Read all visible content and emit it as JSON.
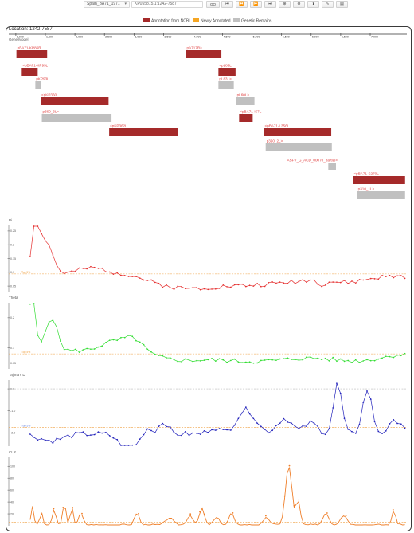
{
  "toolbar": {
    "strain": "Spain_BA71_1971",
    "region": "KP055815.1:1242-7587",
    "go_label": "GO",
    "buttons": [
      {
        "name": "first-icon",
        "glyph": "⏮"
      },
      {
        "name": "previous-icon",
        "glyph": "⏪"
      },
      {
        "name": "next-icon",
        "glyph": "⏩"
      },
      {
        "name": "last-icon",
        "glyph": "⏭"
      },
      {
        "name": "zoom-in-icon",
        "glyph": "⊕"
      },
      {
        "name": "zoom-out-icon",
        "glyph": "⊖"
      },
      {
        "name": "info-icon",
        "glyph": "ℹ"
      },
      {
        "name": "chart-icon",
        "glyph": "∿"
      },
      {
        "name": "document-icon",
        "glyph": "▤"
      }
    ]
  },
  "legend": [
    {
      "label": "Annotation from NCBI",
      "color": "#a52a2a"
    },
    {
      "label": "Newly Annotated",
      "color": "#f5a623"
    },
    {
      "label": "Genetic Remains",
      "color": "#c0c0c0"
    }
  ],
  "location_label": "Location: 1242-7587",
  "gene_model_label": "Gene Model",
  "axis": {
    "start": 1242,
    "end": 7587,
    "ticks": [
      1000,
      1500,
      2000,
      2500,
      3000,
      3500,
      4000,
      4500,
      5000,
      5500,
      6000,
      6500,
      7000
    ],
    "tick_labels": [
      "1,000",
      "1,500",
      "2,000",
      "2,500",
      "3,000",
      "3,500",
      "4,000",
      "4,500",
      "5,000",
      "5,500",
      "6,000",
      "6,500",
      "7,000"
    ]
  },
  "colors": {
    "ncbi": "#a52a2a",
    "remains": "#c0c0c0",
    "label": "#e04040",
    "pi": "#e53030",
    "theta": "#33dd33",
    "tajima": "#2222bb",
    "clr": "#ef7f2a",
    "threshold": "#f0a040"
  },
  "genes": [
    {
      "label": "pBA71-KP86R",
      "start": 1010,
      "end": 1530,
      "type": "ncbi",
      "row": 0,
      "label_anchor": "left"
    },
    {
      "label": "<pBA71-KP93L",
      "start": 1100,
      "end": 1370,
      "type": "ncbi",
      "row": 1,
      "label_anchor": "left"
    },
    {
      "label": "pKP93L",
      "start": 1330,
      "end": 1420,
      "type": "remains",
      "row": 2,
      "label_anchor": "left"
    },
    {
      "label": "<pKP360L",
      "start": 1420,
      "end": 2570,
      "type": "ncbi",
      "row": 3,
      "label_anchor": "left"
    },
    {
      "label": "p360_3L>",
      "start": 1440,
      "end": 2620,
      "type": "remains",
      "row": 4,
      "label_anchor": "left"
    },
    {
      "label": "<pKP362L",
      "start": 2580,
      "end": 3750,
      "type": "ncbi",
      "row": 5,
      "label_anchor": "left"
    },
    {
      "label": "pA717R>",
      "start": 3880,
      "end": 4480,
      "type": "ncbi",
      "row": 0,
      "label_anchor": "left"
    },
    {
      "label": "<pL83L",
      "start": 4430,
      "end": 4720,
      "type": "ncbi",
      "row": 1,
      "label_anchor": "left"
    },
    {
      "label": "pL83L>",
      "start": 4430,
      "end": 4690,
      "type": "remains",
      "row": 2,
      "label_anchor": "left"
    },
    {
      "label": "pL60L>",
      "start": 4730,
      "end": 5040,
      "type": "remains",
      "row": 3,
      "label_anchor": "left"
    },
    {
      "label": "<pBA71-I57L",
      "start": 4780,
      "end": 5010,
      "type": "ncbi",
      "row": 4,
      "label_anchor": "left"
    },
    {
      "label": "<pBA71-L356L",
      "start": 5200,
      "end": 6340,
      "type": "ncbi",
      "row": 5,
      "label_anchor": "left"
    },
    {
      "label": "p360_2L>",
      "start": 5230,
      "end": 6350,
      "type": "remains",
      "row": 6,
      "label_anchor": "left"
    },
    {
      "label": "ASFV_G_ACD_00070_partial>",
      "start": 6290,
      "end": 6420,
      "type": "remains",
      "row": 7,
      "label_anchor": "right"
    },
    {
      "label": "<pBA71-S270L",
      "start": 6710,
      "end": 7590,
      "type": "ncbi",
      "row": 8,
      "label_anchor": "left"
    },
    {
      "label": "p310_1L>",
      "start": 6780,
      "end": 7590,
      "type": "remains",
      "row": 9,
      "label_anchor": "left"
    }
  ],
  "plots": [
    {
      "key": "pi",
      "title": "Pi",
      "color_key": "pi",
      "yticks": [
        0.25,
        0.2,
        0.15,
        0.1,
        0.05
      ],
      "ytick_labels": [
        "0.25",
        "0.2",
        "0.15",
        "0.1",
        "0.05"
      ],
      "ylim": [
        0.03,
        0.27
      ],
      "threshold": 0.094,
      "threshold_label": "Top 5%",
      "peaks": [
        [
          1330,
          0.18,
          60
        ],
        [
          1500,
          0.13,
          120
        ],
        [
          2300,
          0.03,
          300
        ],
        [
          2950,
          0.01,
          200
        ],
        [
          3800,
          -0.035,
          500
        ],
        [
          5000,
          -0.03,
          700
        ],
        [
          6180,
          -0.015,
          60
        ],
        [
          6600,
          -0.02,
          300
        ]
      ],
      "base": 0.085,
      "noise": 0.008
    },
    {
      "key": "theta",
      "title": "Theta",
      "color_key": "theta",
      "yticks": [
        0.2,
        0.1,
        0.05
      ],
      "ytick_labels": [
        "0.2",
        "0.1",
        "0.05"
      ],
      "ylim": [
        0.03,
        0.25
      ],
      "threshold": 0.08,
      "threshold_label": "Top 5%",
      "peaks": [
        [
          1280,
          0.2,
          50
        ],
        [
          1600,
          0.11,
          100
        ],
        [
          2650,
          0.03,
          220
        ],
        [
          3000,
          0.04,
          160
        ],
        [
          3700,
          -0.02,
          400
        ],
        [
          5000,
          -0.035,
          800
        ],
        [
          6800,
          -0.03,
          500
        ]
      ],
      "base": 0.09,
      "noise": 0.007
    },
    {
      "key": "tajima",
      "title": "Tajima's D",
      "color_key": "tajima",
      "yticks": [
        0.0,
        -1.0,
        -2.0
      ],
      "ytick_labels": [
        "0.0",
        "-1.0",
        "-2.0"
      ],
      "ylim": [
        -2.6,
        0.4
      ],
      "threshold": -1.75,
      "threshold_label": "Top 5%",
      "threshold2": 0.0,
      "peaks": [
        [
          1600,
          -0.3,
          200
        ],
        [
          3200,
          0.45,
          80
        ],
        [
          3500,
          0.55,
          80
        ],
        [
          4350,
          0.3,
          90
        ],
        [
          4900,
          1.1,
          160
        ],
        [
          5550,
          0.7,
          130
        ],
        [
          6000,
          0.5,
          110
        ],
        [
          6450,
          2.3,
          70
        ],
        [
          6950,
          2.0,
          80
        ],
        [
          7450,
          0.6,
          120
        ],
        [
          2850,
          -0.6,
          120
        ],
        [
          3100,
          -0.4,
          100
        ]
      ],
      "base": -2.05,
      "noise": 0.12
    },
    {
      "key": "clr",
      "title": "CLR",
      "color_key": "clr",
      "yticks": [
        100,
        80,
        60,
        40,
        20
      ],
      "ytick_labels": [
        "100",
        "80",
        "60",
        "40",
        "20"
      ],
      "ylim": [
        0,
        115
      ],
      "threshold": 6,
      "threshold_label": "",
      "peaks": [
        [
          1280,
          30,
          25
        ],
        [
          1430,
          20,
          25
        ],
        [
          1650,
          25,
          30
        ],
        [
          1820,
          38,
          25
        ],
        [
          1950,
          30,
          25
        ],
        [
          2100,
          18,
          40
        ],
        [
          3050,
          20,
          40
        ],
        [
          3600,
          12,
          60
        ],
        [
          3950,
          16,
          50
        ],
        [
          4150,
          28,
          40
        ],
        [
          4400,
          12,
          50
        ],
        [
          4650,
          20,
          40
        ],
        [
          5250,
          12,
          50
        ],
        [
          5620,
          98,
          55
        ],
        [
          5780,
          40,
          35
        ],
        [
          6250,
          20,
          50
        ],
        [
          6550,
          16,
          60
        ],
        [
          7400,
          25,
          30
        ]
      ],
      "base": 1.5,
      "noise": 1.5
    }
  ]
}
